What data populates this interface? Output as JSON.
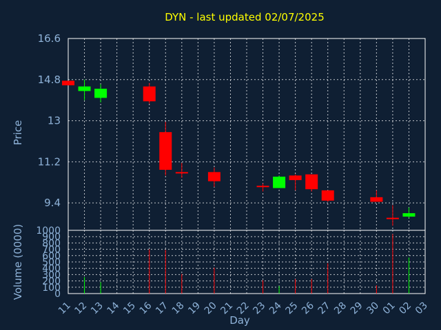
{
  "chart_data": {
    "type": "candlestick",
    "title": "DYN - last updated 02/07/2025",
    "ylabel": "Price",
    "volume_label": "Volume (0000)",
    "xlabel": "Day",
    "ylim": [
      8.2,
      16.6
    ],
    "y_ticks": [
      "16.6",
      "14.8",
      "13",
      "11.2",
      "9.4"
    ],
    "volume_ylim": [
      0,
      1000
    ],
    "volume_ticks": [
      "1000",
      "900",
      "800",
      "700",
      "600",
      "500",
      "400",
      "300",
      "200",
      "100",
      "0"
    ],
    "x_ticks": [
      "11",
      "12",
      "13",
      "14",
      "15",
      "16",
      "17",
      "18",
      "19",
      "20",
      "21",
      "22",
      "23",
      "24",
      "25",
      "26",
      "27",
      "28",
      "29",
      "30",
      "01",
      "02",
      "03"
    ],
    "colors": {
      "up": "#00ff00",
      "down": "#ff0000",
      "title": "#ffff00",
      "axis_text": "#8fb3d9",
      "background": "#0f1f33"
    },
    "candles": [
      {
        "day": "11",
        "open": 14.75,
        "high": 14.75,
        "low": 14.55,
        "close": 14.55,
        "volume": 0
      },
      {
        "day": "12",
        "open": 14.3,
        "high": 14.8,
        "low": 13.9,
        "close": 14.5,
        "volume": 260
      },
      {
        "day": "13",
        "open": 14.0,
        "high": 14.6,
        "low": 13.8,
        "close": 14.4,
        "volume": 180
      },
      {
        "day": "16",
        "open": 14.5,
        "high": 14.65,
        "low": 13.75,
        "close": 13.85,
        "volume": 700
      },
      {
        "day": "17",
        "open": 12.5,
        "high": 12.95,
        "low": 10.6,
        "close": 10.85,
        "volume": 690
      },
      {
        "day": "18",
        "open": 10.75,
        "high": 11.15,
        "low": 10.5,
        "close": 10.7,
        "volume": 310
      },
      {
        "day": "20",
        "open": 10.75,
        "high": 10.95,
        "low": 10.1,
        "close": 10.35,
        "volume": 410
      },
      {
        "day": "23",
        "open": 10.15,
        "high": 10.25,
        "low": 9.9,
        "close": 10.1,
        "volume": 210
      },
      {
        "day": "24",
        "open": 10.05,
        "high": 10.6,
        "low": 10.05,
        "close": 10.55,
        "volume": 120
      },
      {
        "day": "25",
        "open": 10.6,
        "high": 10.65,
        "low": 9.95,
        "close": 10.4,
        "volume": 230
      },
      {
        "day": "26",
        "open": 10.65,
        "high": 10.65,
        "low": 9.9,
        "close": 10.0,
        "volume": 230
      },
      {
        "day": "27",
        "open": 9.95,
        "high": 9.95,
        "low": 9.45,
        "close": 9.5,
        "volume": 480
      },
      {
        "day": "30",
        "open": 9.65,
        "high": 9.95,
        "low": 9.45,
        "close": 9.45,
        "volume": 130
      },
      {
        "day": "01",
        "open": 8.75,
        "high": 9.3,
        "low": 8.4,
        "close": 8.7,
        "volume": 940
      },
      {
        "day": "02",
        "open": 8.8,
        "high": 9.2,
        "low": 8.75,
        "close": 8.95,
        "volume": 570
      }
    ]
  }
}
